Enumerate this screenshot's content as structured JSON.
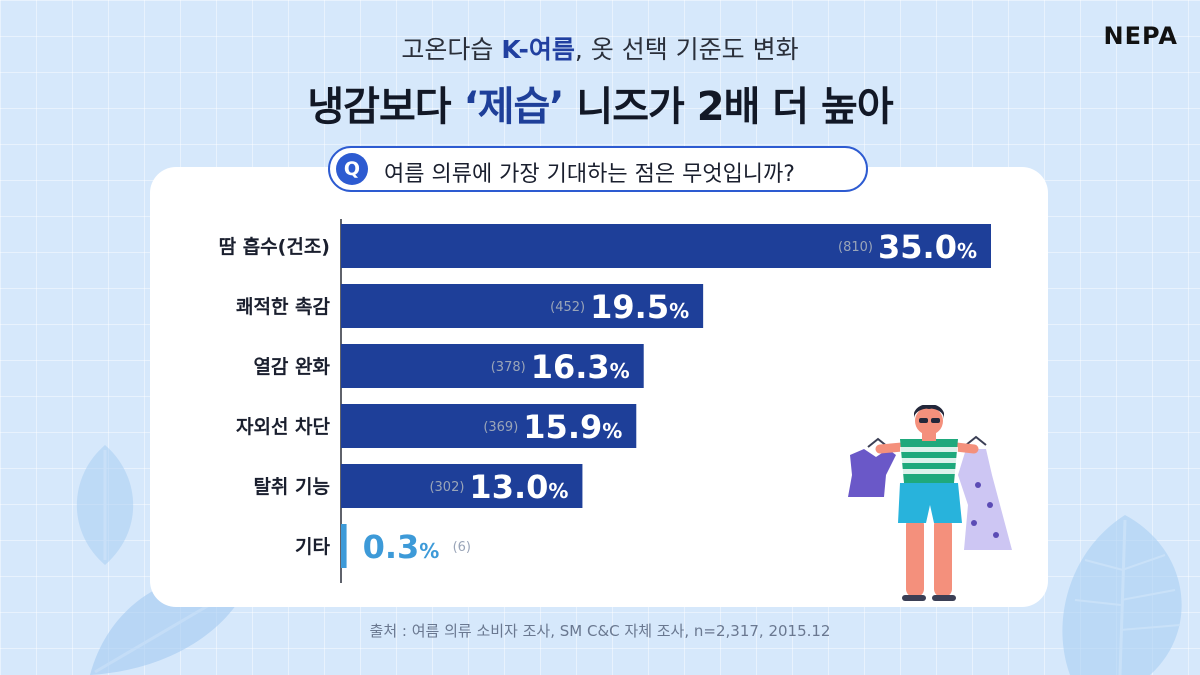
{
  "brand": "NEPA",
  "header": {
    "subtitle_pre": "고온다습 ",
    "subtitle_hl": "K-여름",
    "subtitle_post": ", 옷 선택 기준도 변화",
    "title_pre": "냉감보다 ",
    "title_hl": "‘제습’",
    "title_post": " 니즈가 2배 더 높아"
  },
  "question": {
    "badge": "Q",
    "text": "여름 의류에 가장 기대하는 점은 무엇입니까?"
  },
  "source": "출처 : 여름 의류 소비자 조사, SM C&C 자체 조사, n=2,317, 2015.12",
  "colors": {
    "bar_main": "#1e3f99",
    "bar_other": "#3d9ad8",
    "pill_border": "#2d5bd1",
    "count_text": "#9aa5b8"
  },
  "chart_data": {
    "type": "bar",
    "orientation": "horizontal",
    "categories": [
      "땀 흡수(건조)",
      "쾌적한 촉감",
      "열감 완화",
      "자외선 차단",
      "탈취 기능",
      "기타"
    ],
    "values": [
      35.0,
      19.5,
      16.3,
      15.9,
      13.0,
      0.3
    ],
    "value_labels": [
      "35.0",
      "19.5",
      "16.3",
      "15.9",
      "13.0",
      "0.3"
    ],
    "value_unit": "%",
    "counts": [
      "(810)",
      "(452)",
      "(378)",
      "(369)",
      "(302)",
      "(6)"
    ],
    "xlim": [
      0,
      35.0
    ],
    "grid": false,
    "legend": "none"
  }
}
